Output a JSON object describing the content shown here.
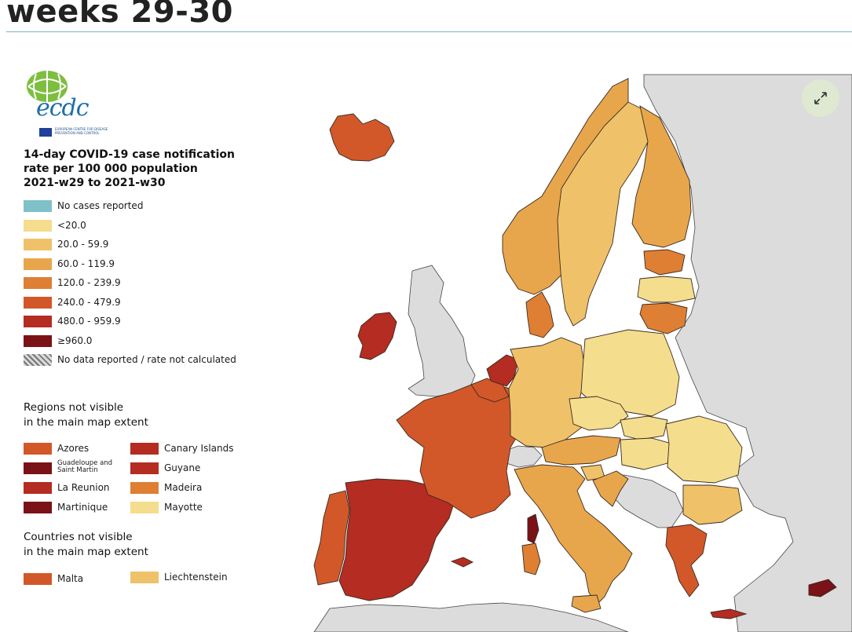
{
  "heading": "weeks 29-30",
  "legend": {
    "logo_text": "ecdc",
    "logo_sub": "EUROPEAN CENTRE FOR DISEASE PREVENTION AND CONTROL",
    "title_lines": [
      "14-day COVID-19 case notification",
      "rate per 100 000 population",
      "2021-w29 to 2021-w30"
    ],
    "items": [
      {
        "label": "No cases reported",
        "color": "#7fc0c9"
      },
      {
        "label": "<20.0",
        "color": "#f4dd8c"
      },
      {
        "label": "20.0 - 59.9",
        "color": "#efc26a"
      },
      {
        "label": "60.0 - 119.9",
        "color": "#e8a64c"
      },
      {
        "label": "120.0 - 239.9",
        "color": "#de7f34"
      },
      {
        "label": "240.0 - 479.9",
        "color": "#d2582a"
      },
      {
        "label": "480.0 - 959.9",
        "color": "#b42c22"
      },
      {
        "label": "≥960.0",
        "color": "#7a1217"
      },
      {
        "label": "No data reported / rate not calculated",
        "color": "hatched"
      }
    ]
  },
  "regions_not_visible": {
    "title_lines": [
      "Regions not visible",
      "in the main map extent"
    ],
    "items": [
      {
        "label": "Azores",
        "color": "#d2582a"
      },
      {
        "label": "Canary Islands",
        "color": "#b42c22"
      },
      {
        "label": "Guadeloupe and Saint Martin",
        "color": "#7a1217"
      },
      {
        "label": "Guyane",
        "color": "#b42c22"
      },
      {
        "label": "La Reunion",
        "color": "#b42c22"
      },
      {
        "label": "Madeira",
        "color": "#de7f34"
      },
      {
        "label": "Martinique",
        "color": "#7a1217"
      },
      {
        "label": "Mayotte",
        "color": "#f4dd8c"
      }
    ]
  },
  "countries_not_visible": {
    "title_lines": [
      "Countries not visible",
      "in the main map extent"
    ],
    "items": [
      {
        "label": "Malta",
        "color": "#d2582a"
      },
      {
        "label": "Liechtenstein",
        "color": "#efc26a"
      }
    ]
  },
  "map": {
    "nodata_color": "#dcdcdc",
    "regions": [
      {
        "name": "iceland",
        "color": "#d2582a"
      },
      {
        "name": "ireland",
        "color": "#b42c22"
      },
      {
        "name": "portugal",
        "color": "#d2582a"
      },
      {
        "name": "spain",
        "color": "#b42c22"
      },
      {
        "name": "france",
        "color": "#d2582a"
      },
      {
        "name": "netherlands",
        "color": "#b42c22"
      },
      {
        "name": "belgium",
        "color": "#d2582a"
      },
      {
        "name": "germany",
        "color": "#efc26a"
      },
      {
        "name": "denmark",
        "color": "#de7f34"
      },
      {
        "name": "norway",
        "color": "#e8a64c"
      },
      {
        "name": "sweden",
        "color": "#efc26a"
      },
      {
        "name": "finland",
        "color": "#e8a64c"
      },
      {
        "name": "estonia",
        "color": "#de7f34"
      },
      {
        "name": "latvia",
        "color": "#f4dd8c"
      },
      {
        "name": "lithuania",
        "color": "#de7f34"
      },
      {
        "name": "poland",
        "color": "#f4dd8c"
      },
      {
        "name": "czechia",
        "color": "#f4dd8c"
      },
      {
        "name": "slovakia",
        "color": "#f4dd8c"
      },
      {
        "name": "austria",
        "color": "#e8a64c"
      },
      {
        "name": "hungary",
        "color": "#f4dd8c"
      },
      {
        "name": "romania",
        "color": "#f4dd8c"
      },
      {
        "name": "bulgaria",
        "color": "#efc26a"
      },
      {
        "name": "italy",
        "color": "#e8a64c"
      },
      {
        "name": "slovenia",
        "color": "#efc26a"
      },
      {
        "name": "croatia",
        "color": "#e8a64c"
      },
      {
        "name": "greece",
        "color": "#d2582a"
      },
      {
        "name": "corsica",
        "color": "#7a1217"
      },
      {
        "name": "sardinia",
        "color": "#de7f34"
      },
      {
        "name": "cyprus",
        "color": "#7a1217"
      },
      {
        "name": "crete",
        "color": "#b42c22"
      },
      {
        "name": "balearic",
        "color": "#b42c22"
      }
    ]
  },
  "expand_icon": "expand-arrows-icon"
}
